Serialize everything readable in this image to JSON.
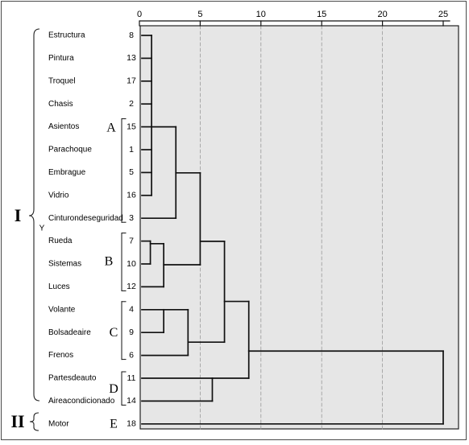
{
  "chart_data": {
    "type": "dendrogram",
    "xlim": [
      0,
      25
    ],
    "x_ticks": [
      0,
      5,
      10,
      15,
      20,
      25
    ],
    "grid": true,
    "leaves": [
      {
        "label": "Estructura",
        "case": "8"
      },
      {
        "label": "Pintura",
        "case": "13"
      },
      {
        "label": "Troquel",
        "case": "17"
      },
      {
        "label": "Chasis",
        "case": "2"
      },
      {
        "label": "Asientos",
        "case": "15"
      },
      {
        "label": "Parachoque",
        "case": "1"
      },
      {
        "label": "Embrague",
        "case": "5"
      },
      {
        "label": "Vidrio",
        "case": "16"
      },
      {
        "label": "Cinturondeseguridad",
        "case": "3"
      },
      {
        "label": "Rueda",
        "case": "7"
      },
      {
        "label": "Sistemas",
        "case": "10"
      },
      {
        "label": "Luces",
        "case": "12"
      },
      {
        "label": "Volante",
        "case": "4"
      },
      {
        "label": "Bolsadeaire",
        "case": "9"
      },
      {
        "label": "Frenos",
        "case": "6"
      },
      {
        "label": "Partesdeauto",
        "case": "11"
      },
      {
        "label": "Aireacondicionado",
        "case": "14"
      },
      {
        "label": "Motor",
        "case": "18"
      }
    ],
    "merges": [
      {
        "a": "L0",
        "b": "L1",
        "height": 1
      },
      {
        "a": "M0",
        "b": "L2",
        "height": 1
      },
      {
        "a": "M1",
        "b": "L3",
        "height": 1
      },
      {
        "a": "M2",
        "b": "L4",
        "height": 1
      },
      {
        "a": "M3",
        "b": "L5",
        "height": 1
      },
      {
        "a": "M4",
        "b": "L6",
        "height": 1
      },
      {
        "a": "M5",
        "b": "L7",
        "height": 1
      },
      {
        "a": "L9",
        "b": "L10",
        "height": 1
      },
      {
        "a": "M7",
        "b": "L11",
        "height": 2
      },
      {
        "a": "L12",
        "b": "L13",
        "height": 2
      },
      {
        "a": "M9",
        "b": "L14",
        "height": 4
      },
      {
        "a": "M6",
        "b": "L4",
        "height": 3,
        "join_at_leaf": true
      },
      {
        "a": "M11",
        "b": "M6b",
        "height": 5
      },
      {
        "a": "M12",
        "b": "M10",
        "height": 7
      },
      {
        "a": "L15",
        "b": "L16",
        "height": 6
      },
      {
        "a": "M13",
        "b": "M14",
        "height": 9
      },
      {
        "a": "M15",
        "b": "L17",
        "height": 25
      }
    ],
    "cluster_letters": [
      "A",
      "B",
      "C",
      "D",
      "E"
    ],
    "group_numerals": [
      "I",
      "II"
    ],
    "group_marker": "Y"
  }
}
